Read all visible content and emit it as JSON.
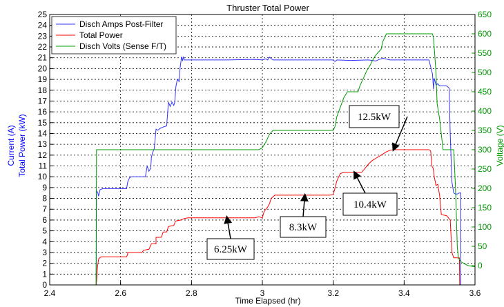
{
  "chart_data": {
    "type": "line",
    "title": "Thruster Total Power",
    "xlabel": "Time Elapsed (hr)",
    "ylabel_left_outer": "Current (A)",
    "ylabel_left_inner": "Total Power (kW)",
    "ylabel_right": "Voltage (V)",
    "xlim": [
      2.4,
      3.6
    ],
    "ylim_left": [
      0,
      25
    ],
    "ylim_right": [
      -50,
      650
    ],
    "x_ticks": [
      "2.4",
      "2.6",
      "2.8",
      "3",
      "3.2",
      "3.4",
      "3.6"
    ],
    "y_left_ticks": [
      "0",
      "1",
      "2",
      "3",
      "4",
      "5",
      "6",
      "7",
      "8",
      "9",
      "10",
      "11",
      "12",
      "13",
      "14",
      "15",
      "16",
      "17",
      "18",
      "19",
      "20",
      "21",
      "22",
      "23",
      "24",
      "25"
    ],
    "y_right_ticks": [
      "0",
      "50",
      "100",
      "150",
      "200",
      "250",
      "300",
      "350",
      "400",
      "450",
      "500",
      "550",
      "600",
      "650"
    ],
    "grid": true,
    "legend_position": "top-left",
    "colors": {
      "current": "#3333ff",
      "power": "#ff0000",
      "voltage": "#009900",
      "left_axis": "#0000ff",
      "right_axis": "#009900"
    },
    "series": [
      {
        "name": "Disch Amps Post-Filter",
        "axis": "left",
        "points": [
          [
            2.4,
            0
          ],
          [
            2.531,
            0
          ],
          [
            2.532,
            8.7
          ],
          [
            2.536,
            8.5
          ],
          [
            2.538,
            8.2
          ],
          [
            2.542,
            8.8
          ],
          [
            2.55,
            8.9
          ],
          [
            2.6,
            8.9
          ],
          [
            2.617,
            8.9
          ],
          [
            2.62,
            9.5
          ],
          [
            2.625,
            9.9
          ],
          [
            2.63,
            10
          ],
          [
            2.66,
            10
          ],
          [
            2.67,
            10
          ],
          [
            2.675,
            11
          ],
          [
            2.68,
            10.5
          ],
          [
            2.685,
            10.8
          ],
          [
            2.687,
            11.8
          ],
          [
            2.69,
            12.2
          ],
          [
            2.695,
            12.6
          ],
          [
            2.7,
            14.4
          ],
          [
            2.705,
            14.3
          ],
          [
            2.713,
            14.5
          ],
          [
            2.72,
            14.6
          ],
          [
            2.73,
            14.7
          ],
          [
            2.735,
            16.9
          ],
          [
            2.74,
            16.5
          ],
          [
            2.745,
            16.9
          ],
          [
            2.75,
            16.6
          ],
          [
            2.753,
            16.9
          ],
          [
            2.756,
            18.3
          ],
          [
            2.76,
            19
          ],
          [
            2.765,
            18.8
          ],
          [
            2.768,
            20.1
          ],
          [
            2.772,
            21.1
          ],
          [
            2.775,
            20.7
          ],
          [
            2.777,
            21.1
          ],
          [
            2.78,
            20.8
          ],
          [
            2.83,
            20.8
          ],
          [
            2.9,
            20.8
          ],
          [
            2.98,
            20.85
          ],
          [
            3.0,
            20.8
          ],
          [
            3.01,
            20.9
          ],
          [
            3.015,
            20.8
          ],
          [
            3.02,
            21.05
          ],
          [
            3.03,
            20.8
          ],
          [
            3.2,
            20.8
          ],
          [
            3.205,
            20.65
          ],
          [
            3.21,
            20.8
          ],
          [
            3.25,
            20.75
          ],
          [
            3.3,
            20.8
          ],
          [
            3.32,
            20.7
          ],
          [
            3.33,
            20.85
          ],
          [
            3.34,
            20.95
          ],
          [
            3.36,
            20.8
          ],
          [
            3.47,
            20.8
          ],
          [
            3.48,
            19.5
          ],
          [
            3.483,
            18.1
          ],
          [
            3.485,
            19.1
          ],
          [
            3.49,
            18.5
          ],
          [
            3.495,
            18.6
          ],
          [
            3.5,
            18.4
          ],
          [
            3.52,
            18.4
          ],
          [
            3.527,
            18.2
          ],
          [
            3.53,
            14
          ],
          [
            3.535,
            9.5
          ],
          [
            3.54,
            8.5
          ],
          [
            3.545,
            8.4
          ],
          [
            3.55,
            8.4
          ],
          [
            3.555,
            8.5
          ],
          [
            3.56,
            8.5
          ],
          [
            3.56,
            0
          ],
          [
            3.6,
            0
          ]
        ]
      },
      {
        "name": "Total Power",
        "axis": "left",
        "points": [
          [
            2.4,
            0
          ],
          [
            2.531,
            0
          ],
          [
            2.532,
            0.3
          ],
          [
            2.535,
            1.7
          ],
          [
            2.538,
            2.4
          ],
          [
            2.545,
            2.6
          ],
          [
            2.6,
            2.6
          ],
          [
            2.617,
            2.6
          ],
          [
            2.62,
            2.85
          ],
          [
            2.62,
            3.0
          ],
          [
            2.66,
            3.0
          ],
          [
            2.665,
            3.2
          ],
          [
            2.68,
            3.3
          ],
          [
            2.687,
            3.8
          ],
          [
            2.7,
            3.8
          ],
          [
            2.7,
            4.4
          ],
          [
            2.715,
            4.4
          ],
          [
            2.72,
            4.9
          ],
          [
            2.73,
            4.9
          ],
          [
            2.735,
            5.4
          ],
          [
            2.75,
            5.5
          ],
          [
            2.755,
            5.9
          ],
          [
            2.77,
            6.0
          ],
          [
            2.78,
            6.15
          ],
          [
            2.79,
            6.2
          ],
          [
            2.98,
            6.2
          ],
          [
            2.99,
            6.3
          ],
          [
            3.0,
            6.2
          ],
          [
            3.005,
            6.8
          ],
          [
            3.015,
            7.2
          ],
          [
            3.02,
            7.5
          ],
          [
            3.025,
            8.0
          ],
          [
            3.035,
            8.3
          ],
          [
            3.19,
            8.3
          ],
          [
            3.2,
            8.35
          ],
          [
            3.203,
            8.7
          ],
          [
            3.21,
            9.6
          ],
          [
            3.22,
            10.3
          ],
          [
            3.23,
            10.4
          ],
          [
            3.28,
            10.4
          ],
          [
            3.29,
            10.8
          ],
          [
            3.3,
            11.2
          ],
          [
            3.31,
            11.5
          ],
          [
            3.325,
            11.8
          ],
          [
            3.335,
            12.0
          ],
          [
            3.345,
            12.2
          ],
          [
            3.35,
            12.3
          ],
          [
            3.36,
            12.45
          ],
          [
            3.37,
            12.5
          ],
          [
            3.47,
            12.5
          ],
          [
            3.475,
            12.4
          ],
          [
            3.478,
            11.0
          ],
          [
            3.482,
            10.8
          ],
          [
            3.485,
            10.0
          ],
          [
            3.49,
            9.2
          ],
          [
            3.495,
            9.3
          ],
          [
            3.5,
            8.3
          ],
          [
            3.505,
            6.5
          ],
          [
            3.52,
            6.4
          ],
          [
            3.525,
            6.2
          ],
          [
            3.53,
            6.0
          ],
          [
            3.535,
            3.0
          ],
          [
            3.54,
            2.5
          ],
          [
            3.556,
            2.5
          ],
          [
            3.557,
            0
          ],
          [
            3.6,
            0
          ]
        ]
      },
      {
        "name": "Disch Volts (Sense F/T)",
        "axis": "right",
        "points": [
          [
            2.4,
            -50
          ],
          [
            2.531,
            -50
          ],
          [
            2.532,
            300
          ],
          [
            2.6,
            300
          ],
          [
            2.99,
            300
          ],
          [
            3.0,
            305
          ],
          [
            3.01,
            320
          ],
          [
            3.02,
            340
          ],
          [
            3.03,
            350
          ],
          [
            3.045,
            350
          ],
          [
            3.2,
            350
          ],
          [
            3.205,
            360
          ],
          [
            3.21,
            385
          ],
          [
            3.22,
            410
          ],
          [
            3.23,
            435
          ],
          [
            3.24,
            450
          ],
          [
            3.27,
            450
          ],
          [
            3.275,
            465
          ],
          [
            3.285,
            485
          ],
          [
            3.295,
            505
          ],
          [
            3.305,
            520
          ],
          [
            3.31,
            530
          ],
          [
            3.32,
            545
          ],
          [
            3.335,
            560
          ],
          [
            3.34,
            580
          ],
          [
            3.35,
            600
          ],
          [
            3.48,
            600
          ],
          [
            3.483,
            590
          ],
          [
            3.49,
            500
          ],
          [
            3.493,
            420
          ],
          [
            3.5,
            380
          ],
          [
            3.505,
            340
          ],
          [
            3.51,
            300
          ],
          [
            3.54,
            300
          ],
          [
            3.545,
            200
          ],
          [
            3.55,
            50
          ],
          [
            3.553,
            20
          ],
          [
            3.56,
            10
          ],
          [
            3.58,
            0
          ],
          [
            3.6,
            -3
          ]
        ]
      }
    ],
    "annotations": [
      {
        "text": "6.25kW",
        "x": 2.9,
        "y": 6.25
      },
      {
        "text": "8.3kW",
        "x": 3.12,
        "y": 8.3
      },
      {
        "text": "10.4kW",
        "x": 3.26,
        "y": 10.4
      },
      {
        "text": "12.5kW",
        "x": 3.37,
        "y": 12.5
      }
    ]
  }
}
